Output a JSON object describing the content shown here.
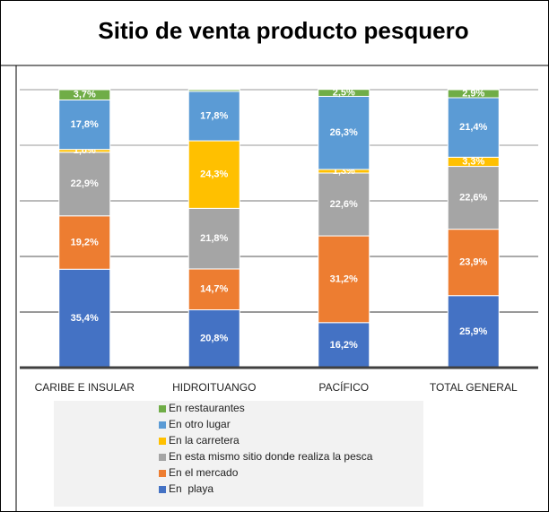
{
  "chart_data": {
    "type": "stacked_bar",
    "title": "Sitio de venta producto pesquero",
    "categories": [
      "CARIBE E INSULAR",
      "HIDROITUANGO",
      "PACÍFICO",
      "TOTAL GENERAL"
    ],
    "series": [
      {
        "name": "En  playa",
        "color": "#4472c4",
        "values": [
          35.4,
          20.8,
          16.2,
          25.9
        ],
        "value_labels": [
          "35,4%",
          "20,8%",
          "16,2%",
          "25,9%"
        ]
      },
      {
        "name": "En el mercado",
        "color": "#ed7d31",
        "values": [
          19.2,
          14.7,
          31.2,
          23.9
        ],
        "value_labels": [
          "19,2%",
          "14,7%",
          "31,2%",
          "23,9%"
        ]
      },
      {
        "name": "En esta mismo sitio donde realiza la pesca",
        "color": "#a5a5a5",
        "values": [
          22.9,
          21.8,
          22.6,
          22.6
        ],
        "value_labels": [
          "22,9%",
          "21,8%",
          "22,6%",
          "22,6%"
        ]
      },
      {
        "name": "En la carretera",
        "color": "#ffc000",
        "values": [
          1.0,
          24.3,
          1.3,
          3.3
        ],
        "value_labels": [
          "1,0%",
          "24,3%",
          "1,3%",
          "3,3%"
        ]
      },
      {
        "name": "En otro lugar",
        "color": "#5b9bd5",
        "values": [
          17.8,
          17.8,
          26.3,
          21.4
        ],
        "value_labels": [
          "17,8%",
          "17,8%",
          "26,3%",
          "21,4%"
        ]
      },
      {
        "name": "En restaurantes",
        "color": "#70ad47",
        "values": [
          3.7,
          0.6,
          2.5,
          2.9
        ],
        "value_labels": [
          "3,7%",
          null,
          "2,5%",
          "2,9%"
        ]
      }
    ],
    "ylim": [
      0,
      100
    ],
    "yticks": [
      0,
      20,
      40,
      60,
      80,
      100
    ],
    "grid": true
  }
}
